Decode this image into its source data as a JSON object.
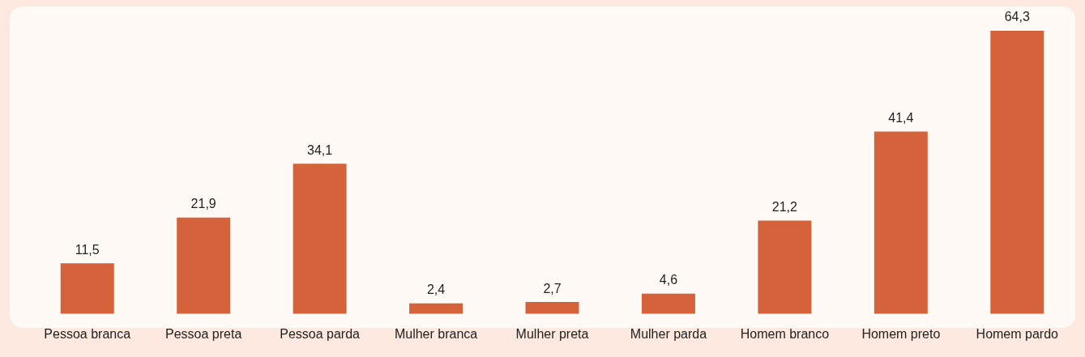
{
  "chart_data": {
    "type": "bar",
    "categories": [
      "Pessoa branca",
      "Pessoa preta",
      "Pessoa parda",
      "Mulher branca",
      "Mulher preta",
      "Mulher parda",
      "Homem branco",
      "Homem preto",
      "Homem pardo"
    ],
    "values": [
      11.5,
      21.9,
      34.1,
      2.4,
      2.7,
      4.6,
      21.2,
      41.4,
      64.3
    ],
    "value_labels": [
      "11,5",
      "21,9",
      "34,1",
      "2,4",
      "2,7",
      "4,6",
      "21,2",
      "41,4",
      "64,3"
    ],
    "color": "#d4623a",
    "grid": false,
    "legend": false
  }
}
